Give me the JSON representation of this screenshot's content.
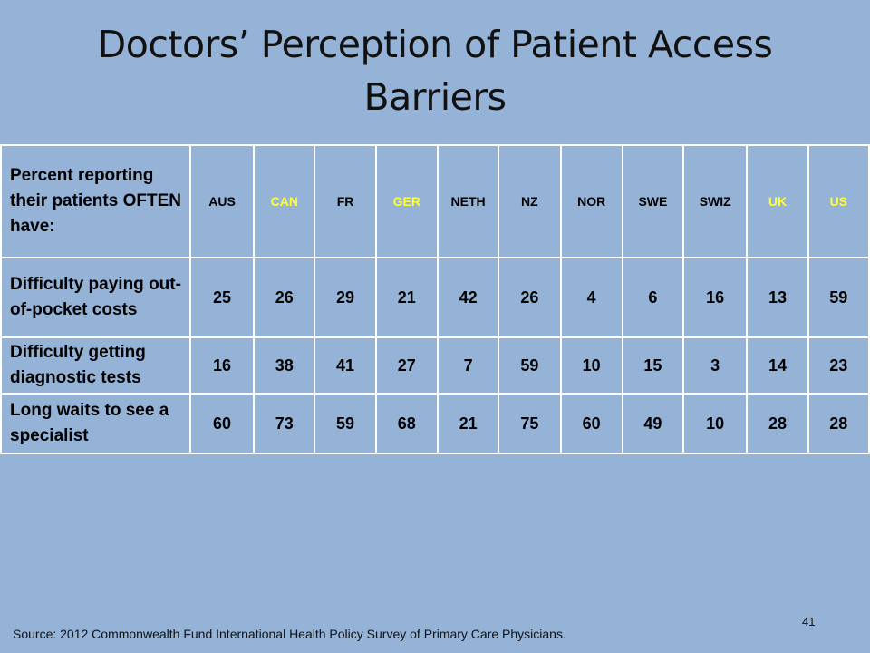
{
  "title": {
    "line1": "Doctors’ Perception of Patient Access",
    "line2": "Barriers"
  },
  "table": {
    "header_label": "Percent reporting their patients OFTEN have:",
    "columns": [
      "AUS",
      "CAN",
      "FR",
      "GER",
      "NETH",
      "NZ",
      "NOR",
      "SWE",
      "SWIZ",
      "UK",
      "US"
    ],
    "highlighted_columns": [
      "CAN",
      "GER",
      "UK",
      "US"
    ],
    "highlight_color": "#ffff33",
    "rows": [
      {
        "label": "Difficulty paying out-of-pocket costs",
        "values": [
          "25",
          "26",
          "29",
          "21",
          "42",
          "26",
          "4",
          "6",
          "16",
          "13",
          "59"
        ]
      },
      {
        "label": "Difficulty getting diagnostic tests",
        "values": [
          "16",
          "38",
          "41",
          "27",
          "7",
          "59",
          "10",
          "15",
          "3",
          "14",
          "23"
        ]
      },
      {
        "label": "Long waits to see a specialist",
        "values": [
          "60",
          "73",
          "59",
          "68",
          "21",
          "75",
          "60",
          "49",
          "10",
          "28",
          "28"
        ]
      }
    ]
  },
  "footer": {
    "source": "Source: 2012 Commonwealth Fund International Health Policy Survey of Primary Care Physicians.",
    "page_number": "41"
  },
  "colors": {
    "background": "#95b3d7",
    "grid": "#ffffff",
    "text": "#000000"
  }
}
